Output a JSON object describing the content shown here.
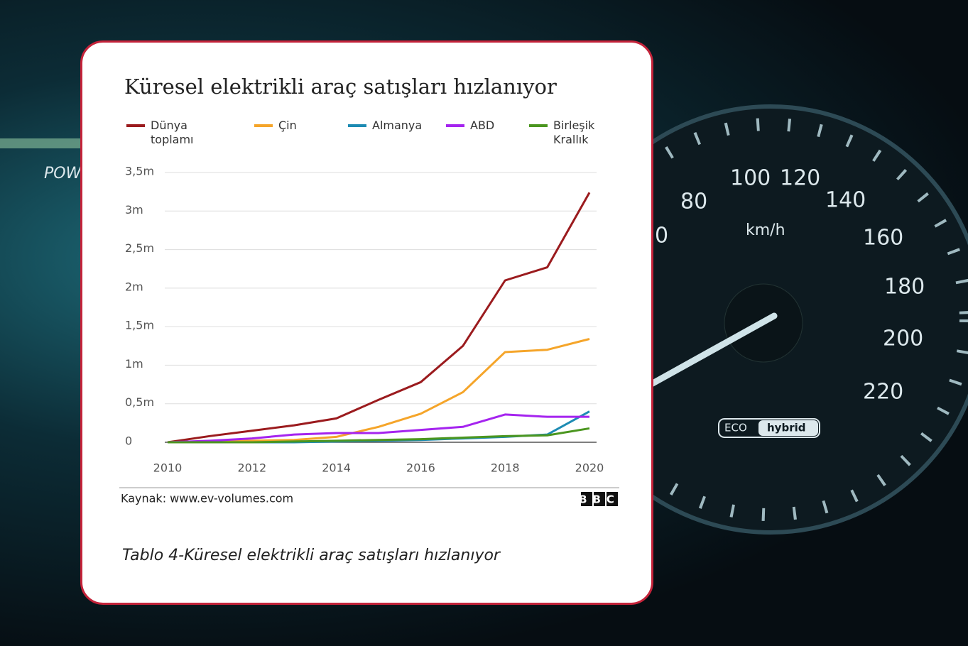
{
  "chart_data": {
    "type": "line",
    "title": "Küresel elektrikli araç satışları hızlanıyor",
    "x": [
      2010,
      2011,
      2012,
      2013,
      2014,
      2015,
      2016,
      2017,
      2018,
      2019,
      2020
    ],
    "xlim": [
      2010,
      2020
    ],
    "xticks": [
      2010,
      2012,
      2014,
      2016,
      2018,
      2020
    ],
    "ylim": [
      0,
      3.5
    ],
    "yticks": [
      0,
      {
        "value": 0.5,
        "label": "0,5m"
      },
      {
        "value": 1,
        "label": "1m"
      },
      {
        "value": 1.5,
        "label": "1,5m"
      },
      {
        "value": 2,
        "label": "2m"
      },
      {
        "value": 2.5,
        "label": "2,5m"
      },
      {
        "value": 3,
        "label": "3m"
      },
      {
        "value": 3.5,
        "label": "3,5m"
      }
    ],
    "grid": true,
    "legend": "top",
    "series": [
      {
        "name": "Dünya toplamı",
        "color": "#9b1b1e",
        "values": [
          0,
          0.08,
          0.15,
          0.22,
          0.31,
          0.55,
          0.78,
          1.25,
          2.1,
          2.27,
          3.24
        ]
      },
      {
        "name": "Çin",
        "color": "#f5a52a",
        "values": [
          0,
          0.01,
          0.02,
          0.03,
          0.07,
          0.2,
          0.37,
          0.65,
          1.17,
          1.2,
          1.34
        ]
      },
      {
        "name": "Almanya",
        "color": "#1d8bb3",
        "values": [
          0,
          0,
          0,
          0,
          0.01,
          0.02,
          0.03,
          0.05,
          0.07,
          0.1,
          0.4
        ]
      },
      {
        "name": "ABD",
        "color": "#a524ef",
        "values": [
          0,
          0.02,
          0.05,
          0.1,
          0.12,
          0.12,
          0.16,
          0.2,
          0.36,
          0.33,
          0.33
        ]
      },
      {
        "name": "Birleşik Krallık",
        "color": "#4b961f",
        "values": [
          0,
          0,
          0,
          0.01,
          0.02,
          0.03,
          0.04,
          0.06,
          0.08,
          0.09,
          0.18
        ]
      }
    ],
    "source": "Kaynak: www.ev-volumes.com",
    "logo": "BBC"
  },
  "caption": "Tablo 4-Küresel elektrikli araç satışları hızlanıyor",
  "background": {
    "power": "POW",
    "speeds": [
      "0",
      "80",
      "100",
      "120",
      "140",
      "160",
      "180",
      "200",
      "220"
    ],
    "unit": "km/h",
    "badge": [
      "ECO",
      "hybrid"
    ]
  }
}
